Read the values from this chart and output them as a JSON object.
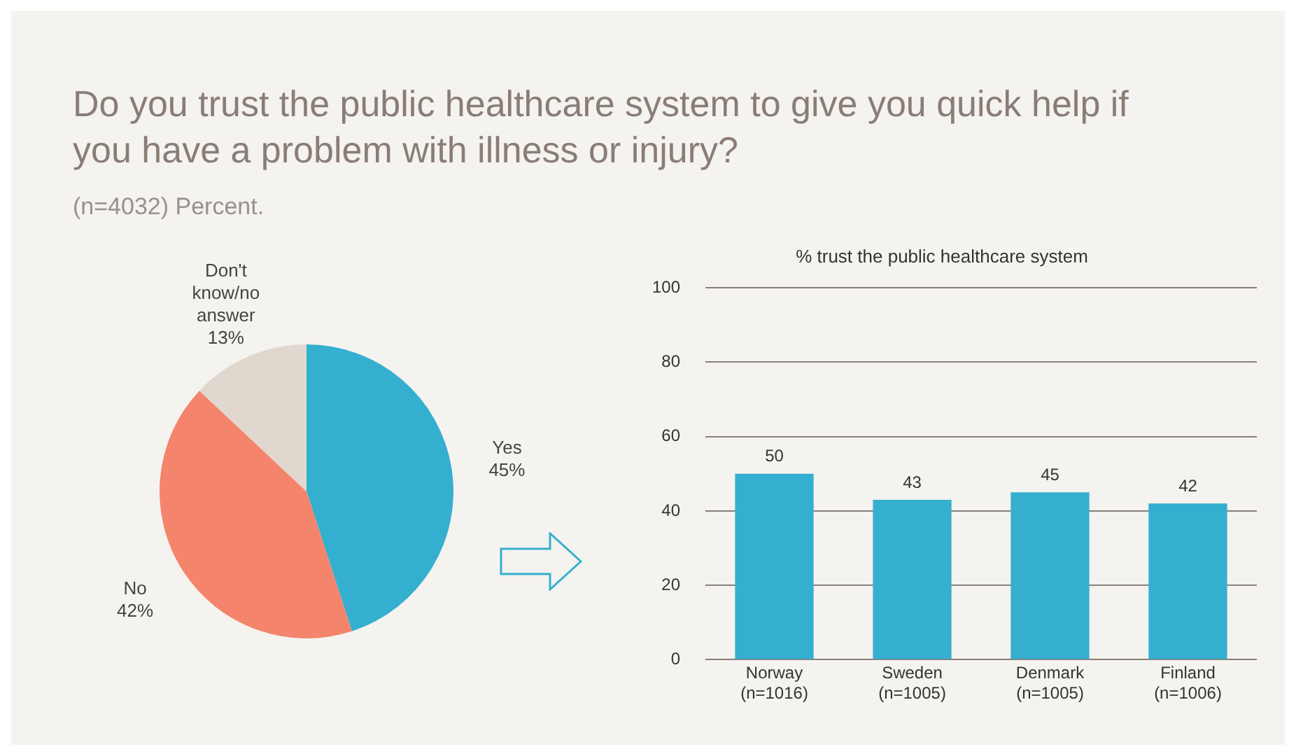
{
  "chart_data": [
    {
      "type": "pie",
      "title": "Do you trust the public healthcare system to give you quick help if you have a problem with illness or injury?",
      "subtitle": "(n=4032) Percent.",
      "categories": [
        "Yes",
        "No",
        "Don't know/no answer"
      ],
      "values": [
        45,
        42,
        13
      ],
      "colors": [
        "#35afd0",
        "#f4846b",
        "#e0d8cf"
      ],
      "value_labels": [
        "45%",
        "42%",
        "13%"
      ]
    },
    {
      "type": "bar",
      "title": "% trust the public healthcare system",
      "categories": [
        "Norway (n=1016)",
        "Sweden (n=1005)",
        "Denmark (n=1005)",
        "Finland (n=1006)"
      ],
      "values": [
        50,
        43,
        45,
        42
      ],
      "color": "#35afd0",
      "ylim": [
        0,
        100
      ],
      "yticks": [
        0,
        20,
        40,
        60,
        80,
        100
      ],
      "grid": "y",
      "data_labels": true
    }
  ]
}
